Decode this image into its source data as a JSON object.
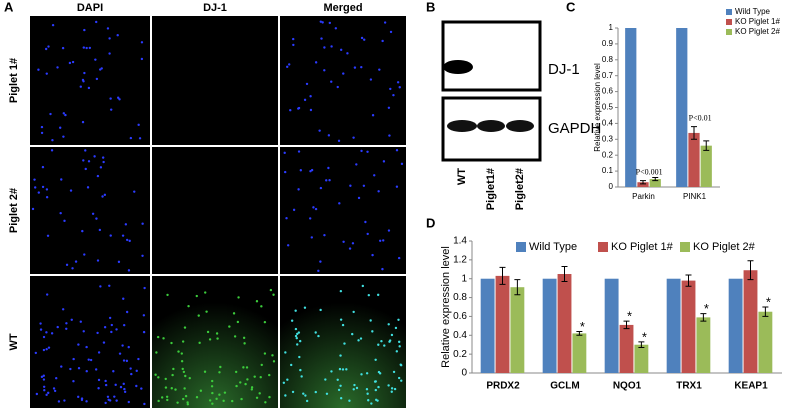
{
  "panels": {
    "a": "A",
    "b": "B",
    "c": "C",
    "d": "D"
  },
  "microscopy": {
    "columns": [
      "DAPI",
      "DJ-1",
      "Merged"
    ],
    "rows": [
      "Piglet 1#",
      "Piglet 2#",
      "WT"
    ]
  },
  "blot": {
    "proteins": [
      "DJ-1",
      "GAPDH"
    ],
    "lanes": [
      "WT",
      "Piglet1#",
      "Piglet2#"
    ]
  },
  "chart_data": [
    {
      "type": "bar",
      "y_label": "Relative expression level",
      "categories": [
        "Parkin",
        "PINK1"
      ],
      "series": [
        {
          "name": "Wild Type",
          "color": "#4f81bd",
          "values": [
            1,
            1
          ]
        },
        {
          "name": "KO Piglet 1#",
          "color": "#c0504d",
          "values": [
            0.03,
            0.34
          ],
          "errors": [
            0.01,
            0.04
          ]
        },
        {
          "name": "KO Piglet 2#",
          "color": "#9bbb59",
          "values": [
            0.05,
            0.26
          ],
          "errors": [
            0.01,
            0.03
          ]
        }
      ],
      "ylim": [
        0,
        1
      ],
      "yticks": [
        0,
        0.1,
        0.2,
        0.3,
        0.4,
        0.5,
        0.6,
        0.7,
        0.8,
        0.9,
        1
      ],
      "legend": "right",
      "annotations": [
        {
          "text": "P<0.001",
          "series": 1,
          "category": 0
        },
        {
          "text": "P<0.01",
          "series": 1,
          "category": 1
        }
      ]
    },
    {
      "type": "bar",
      "y_label": "Relative expression level",
      "categories": [
        "PRDX2",
        "GCLM",
        "NQO1",
        "TRX1",
        "KEAP1"
      ],
      "series": [
        {
          "name": "Wild Type",
          "color": "#4f81bd",
          "values": [
            1,
            1,
            1,
            1,
            1
          ]
        },
        {
          "name": "KO Piglet 1#",
          "color": "#c0504d",
          "values": [
            1.03,
            1.05,
            0.51,
            0.98,
            1.09
          ],
          "errors": [
            0.09,
            0.08,
            0.04,
            0.06,
            0.1
          ]
        },
        {
          "name": "KO Piglet 2#",
          "color": "#9bbb59",
          "values": [
            0.91,
            0.42,
            0.3,
            0.59,
            0.65
          ],
          "errors": [
            0.08,
            0.02,
            0.03,
            0.04,
            0.05
          ]
        }
      ],
      "ylim": [
        0,
        1.4
      ],
      "yticks": [
        0,
        0.2,
        0.4,
        0.6,
        0.8,
        1,
        1.2,
        1.4
      ],
      "legend": "top",
      "annotations": [
        {
          "text": "*",
          "series": 1,
          "category": 2
        },
        {
          "text": "*",
          "series": 2,
          "category": 1
        },
        {
          "text": "*",
          "series": 2,
          "category": 2
        },
        {
          "text": "*",
          "series": 2,
          "category": 3
        },
        {
          "text": "*",
          "series": 2,
          "category": 4
        }
      ]
    }
  ]
}
